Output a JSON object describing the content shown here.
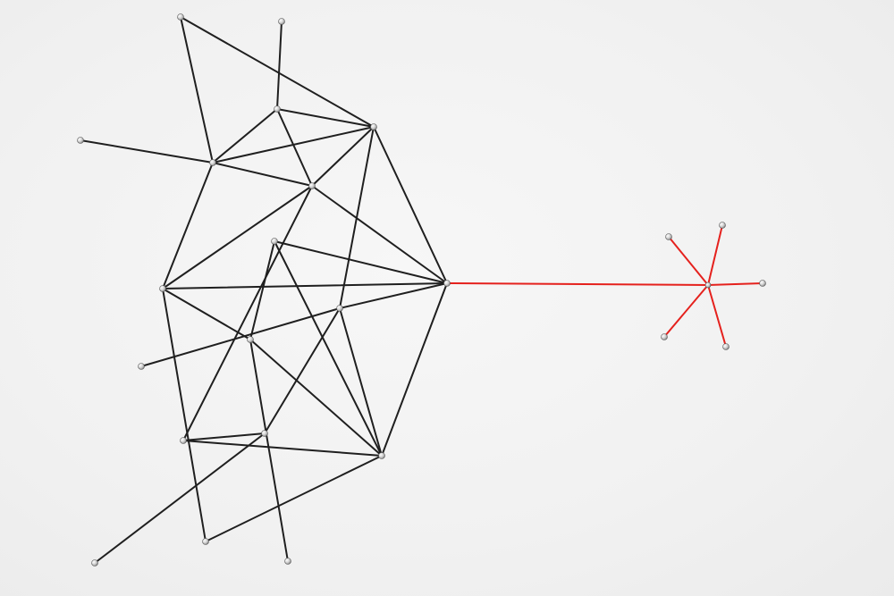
{
  "scene": {
    "background_color": "#f2f2f2",
    "black_thread_color": "#1f1f1f",
    "red_thread_color": "#e5211d",
    "pin_color": "#d8d8d8"
  }
}
